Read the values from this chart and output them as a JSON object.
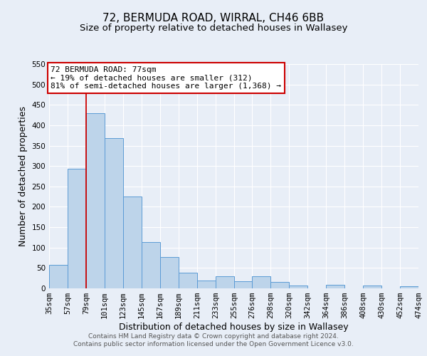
{
  "title": "72, BERMUDA ROAD, WIRRAL, CH46 6BB",
  "subtitle": "Size of property relative to detached houses in Wallasey",
  "xlabel": "Distribution of detached houses by size in Wallasey",
  "ylabel": "Number of detached properties",
  "bin_edges": [
    35,
    57,
    79,
    101,
    123,
    145,
    167,
    189,
    211,
    233,
    255,
    276,
    298,
    320,
    342,
    364,
    386,
    408,
    430,
    452,
    474
  ],
  "bin_heights": [
    57,
    293,
    430,
    368,
    226,
    113,
    77,
    38,
    20,
    29,
    17,
    29,
    16,
    7,
    0,
    8,
    0,
    7,
    0,
    5
  ],
  "bar_color": "#bdd4ea",
  "bar_edge_color": "#5b9bd5",
  "property_line_x": 79,
  "property_line_color": "#cc0000",
  "ylim": [
    0,
    550
  ],
  "yticks": [
    0,
    50,
    100,
    150,
    200,
    250,
    300,
    350,
    400,
    450,
    500,
    550
  ],
  "annotation_title": "72 BERMUDA ROAD: 77sqm",
  "annotation_line1": "← 19% of detached houses are smaller (312)",
  "annotation_line2": "81% of semi-detached houses are larger (1,368) →",
  "annotation_box_color": "#ffffff",
  "annotation_box_edge_color": "#cc0000",
  "tick_labels": [
    "35sqm",
    "57sqm",
    "79sqm",
    "101sqm",
    "123sqm",
    "145sqm",
    "167sqm",
    "189sqm",
    "211sqm",
    "233sqm",
    "255sqm",
    "276sqm",
    "298sqm",
    "320sqm",
    "342sqm",
    "364sqm",
    "386sqm",
    "408sqm",
    "430sqm",
    "452sqm",
    "474sqm"
  ],
  "footer_line1": "Contains HM Land Registry data © Crown copyright and database right 2024.",
  "footer_line2": "Contains public sector information licensed under the Open Government Licence v3.0.",
  "bg_color": "#e8eef7",
  "plot_bg_color": "#e8eef7",
  "grid_color": "#ffffff",
  "title_fontsize": 11,
  "subtitle_fontsize": 9.5,
  "axis_label_fontsize": 9,
  "tick_fontsize": 7.5,
  "footer_fontsize": 6.5,
  "annotation_fontsize": 8
}
